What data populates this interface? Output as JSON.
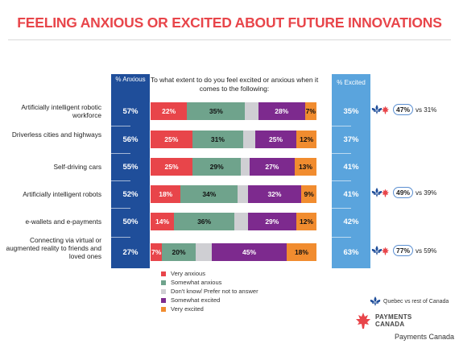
{
  "title": "FEELING ANXIOUS OR EXCITED ABOUT FUTURE INNOVATIONS",
  "question": "To what extent to do you feel excited or anxious when it comes to the following:",
  "col_anxious_header": "% Anxious",
  "col_excited_header": "% Excited",
  "colors": {
    "very_anxious": "#e8454a",
    "somewhat_anxious": "#6fa38c",
    "dont_know": "#cfcfd3",
    "somewhat_excited": "#7d2a8e",
    "very_excited": "#f18c2f",
    "anxious_column": "#1f4e9a",
    "excited_column": "#5aa4dd",
    "title": "#e8454a"
  },
  "chart_data": {
    "type": "bar",
    "orientation": "horizontal",
    "stacked": true,
    "categories": [
      "Artificially intelligent robotic workforce",
      "Driverless cities and highways",
      "Self-driving cars",
      "Artificially intelligent robots",
      "e-wallets and e-payments",
      "Connecting via virtual or augmented reality to friends and loved ones"
    ],
    "series": [
      {
        "name": "Very anxious",
        "values": [
          22,
          25,
          25,
          18,
          14,
          7
        ]
      },
      {
        "name": "Somewhat anxious",
        "values": [
          35,
          31,
          29,
          34,
          36,
          20
        ]
      },
      {
        "name": "Don't know/ Prefer not to answer",
        "values": [
          8,
          7,
          5,
          6,
          8,
          10
        ]
      },
      {
        "name": "Somewhat excited",
        "values": [
          28,
          25,
          27,
          32,
          29,
          45
        ]
      },
      {
        "name": "Very excited",
        "values": [
          7,
          12,
          13,
          9,
          12,
          18
        ]
      }
    ],
    "labels": [
      [
        "22%",
        "35%",
        "",
        "28%",
        "7%"
      ],
      [
        "25%",
        "31%",
        "",
        "25%",
        "12%"
      ],
      [
        "25%",
        "29%",
        "",
        "27%",
        "13%"
      ],
      [
        "18%",
        "34%",
        "",
        "32%",
        "9%"
      ],
      [
        "14%",
        "36%",
        "",
        "29%",
        "12%"
      ],
      [
        "7%",
        "20%",
        "",
        "45%",
        "18%"
      ]
    ],
    "pct_anxious": [
      "57%",
      "56%",
      "55%",
      "52%",
      "50%",
      "27%"
    ],
    "pct_excited": [
      "35%",
      "37%",
      "41%",
      "41%",
      "42%",
      "63%"
    ],
    "legend": [
      "Very anxious",
      "Somewhat anxious",
      "Don't know/ Prefer not to answer",
      "Somewhat excited",
      "Very excited"
    ],
    "legend_placement": "bottom-center"
  },
  "quebec_compare": [
    {
      "row": 0,
      "value": "47%",
      "vs": "vs 31%"
    },
    {
      "row": 3,
      "value": "49%",
      "vs": "vs 39%"
    },
    {
      "row": 5,
      "value": "77%",
      "vs": "vs 59%"
    }
  ],
  "quebec_legend": "Quebec vs rest of Canada",
  "logo_line1": "PAYMENTS",
  "logo_line2": "CANADA",
  "credit": "Payments Canada"
}
